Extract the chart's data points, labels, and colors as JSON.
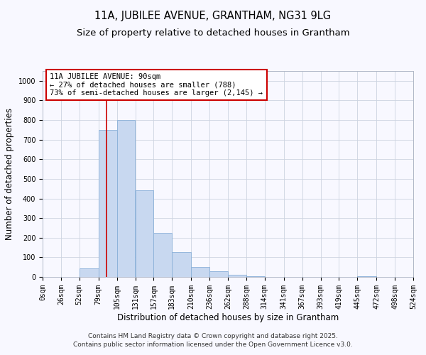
{
  "title": "11A, JUBILEE AVENUE, GRANTHAM, NG31 9LG",
  "subtitle": "Size of property relative to detached houses in Grantham",
  "xlabel": "Distribution of detached houses by size in Grantham",
  "ylabel": "Number of detached properties",
  "bar_edges": [
    0,
    26,
    52,
    79,
    105,
    131,
    157,
    183,
    210,
    236,
    262,
    288,
    314,
    341,
    367,
    393,
    419,
    445,
    472,
    498,
    524
  ],
  "bar_heights": [
    0,
    0,
    42,
    750,
    800,
    440,
    225,
    127,
    50,
    28,
    10,
    5,
    0,
    0,
    0,
    0,
    0,
    2,
    0,
    0
  ],
  "bar_color": "#c8d8f0",
  "bar_edgecolor": "#8ab0d8",
  "property_line_x": 90,
  "property_line_color": "#cc0000",
  "annotation_line1": "11A JUBILEE AVENUE: 90sqm",
  "annotation_line2": "← 27% of detached houses are smaller (788)",
  "annotation_line3": "73% of semi-detached houses are larger (2,145) →",
  "annotation_box_color": "#ffffff",
  "annotation_box_edgecolor": "#cc0000",
  "ylim": [
    0,
    1050
  ],
  "xlim": [
    0,
    524
  ],
  "yticks": [
    0,
    100,
    200,
    300,
    400,
    500,
    600,
    700,
    800,
    900,
    1000
  ],
  "xtick_labels": [
    "0sqm",
    "26sqm",
    "52sqm",
    "79sqm",
    "105sqm",
    "131sqm",
    "157sqm",
    "183sqm",
    "210sqm",
    "236sqm",
    "262sqm",
    "288sqm",
    "314sqm",
    "341sqm",
    "367sqm",
    "393sqm",
    "419sqm",
    "445sqm",
    "472sqm",
    "498sqm",
    "524sqm"
  ],
  "xtick_positions": [
    0,
    26,
    52,
    79,
    105,
    131,
    157,
    183,
    210,
    236,
    262,
    288,
    314,
    341,
    367,
    393,
    419,
    445,
    472,
    498,
    524
  ],
  "title_fontsize": 10.5,
  "subtitle_fontsize": 9.5,
  "axis_label_fontsize": 8.5,
  "tick_fontsize": 7,
  "annotation_fontsize": 7.5,
  "footer_text": "Contains HM Land Registry data © Crown copyright and database right 2025.\nContains public sector information licensed under the Open Government Licence v3.0.",
  "footer_fontsize": 6.5,
  "background_color": "#f8f8ff",
  "grid_color": "#ccd4e0"
}
